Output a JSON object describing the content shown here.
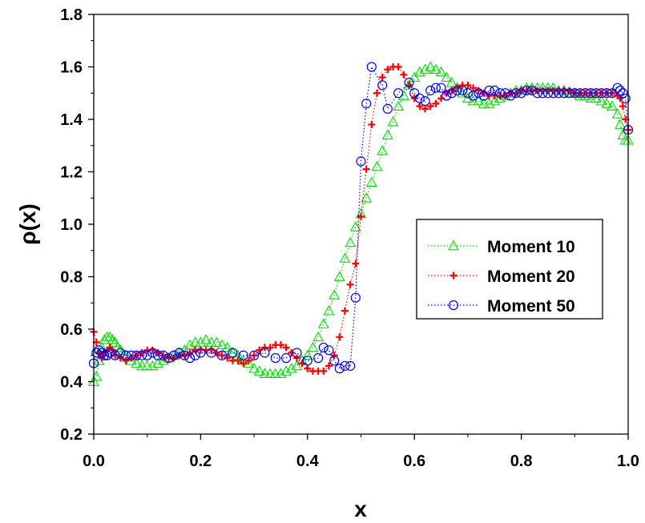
{
  "chart_data": {
    "type": "scatter",
    "title": "",
    "xlabel": "x",
    "ylabel": "ρ(x)",
    "xlim": [
      0.0,
      1.0
    ],
    "ylim": [
      0.2,
      1.8
    ],
    "xticks": [
      "0.0",
      "0.2",
      "0.4",
      "0.6",
      "0.8",
      "1.0"
    ],
    "yticks": [
      "0.2",
      "0.4",
      "0.6",
      "0.8",
      "1.0",
      "1.2",
      "1.4",
      "1.6",
      "1.8"
    ],
    "legend_position": "center-right",
    "grid": false,
    "series": [
      {
        "name": "Moment 10",
        "color": "#00dd00",
        "marker": "triangle",
        "x": [
          0.0,
          0.005,
          0.01,
          0.015,
          0.02,
          0.025,
          0.03,
          0.035,
          0.04,
          0.045,
          0.05,
          0.06,
          0.07,
          0.08,
          0.09,
          0.1,
          0.11,
          0.12,
          0.13,
          0.14,
          0.15,
          0.16,
          0.17,
          0.18,
          0.19,
          0.2,
          0.21,
          0.22,
          0.23,
          0.24,
          0.25,
          0.26,
          0.27,
          0.28,
          0.29,
          0.3,
          0.31,
          0.32,
          0.33,
          0.34,
          0.35,
          0.36,
          0.37,
          0.38,
          0.39,
          0.4,
          0.41,
          0.42,
          0.43,
          0.44,
          0.45,
          0.46,
          0.47,
          0.48,
          0.49,
          0.5,
          0.51,
          0.52,
          0.53,
          0.54,
          0.55,
          0.56,
          0.57,
          0.58,
          0.59,
          0.6,
          0.61,
          0.62,
          0.63,
          0.64,
          0.65,
          0.66,
          0.67,
          0.68,
          0.69,
          0.7,
          0.71,
          0.72,
          0.73,
          0.74,
          0.75,
          0.76,
          0.77,
          0.78,
          0.79,
          0.8,
          0.81,
          0.82,
          0.83,
          0.84,
          0.85,
          0.86,
          0.87,
          0.88,
          0.89,
          0.9,
          0.91,
          0.92,
          0.93,
          0.94,
          0.95,
          0.96,
          0.97,
          0.98,
          0.985,
          0.99,
          0.995,
          1.0
        ],
        "y": [
          0.4,
          0.42,
          0.48,
          0.53,
          0.56,
          0.57,
          0.57,
          0.56,
          0.55,
          0.53,
          0.52,
          0.5,
          0.48,
          0.47,
          0.46,
          0.46,
          0.46,
          0.47,
          0.48,
          0.49,
          0.5,
          0.51,
          0.52,
          0.54,
          0.55,
          0.55,
          0.56,
          0.55,
          0.55,
          0.54,
          0.53,
          0.51,
          0.5,
          0.48,
          0.47,
          0.45,
          0.44,
          0.43,
          0.43,
          0.43,
          0.43,
          0.44,
          0.45,
          0.46,
          0.48,
          0.5,
          0.53,
          0.57,
          0.62,
          0.67,
          0.73,
          0.8,
          0.87,
          0.93,
          0.99,
          1.04,
          1.1,
          1.16,
          1.22,
          1.28,
          1.34,
          1.39,
          1.45,
          1.49,
          1.53,
          1.56,
          1.58,
          1.59,
          1.6,
          1.59,
          1.58,
          1.56,
          1.54,
          1.52,
          1.5,
          1.48,
          1.47,
          1.47,
          1.46,
          1.46,
          1.47,
          1.48,
          1.49,
          1.5,
          1.51,
          1.51,
          1.52,
          1.52,
          1.52,
          1.52,
          1.52,
          1.52,
          1.51,
          1.51,
          1.5,
          1.5,
          1.49,
          1.49,
          1.48,
          1.48,
          1.47,
          1.46,
          1.45,
          1.42,
          1.38,
          1.34,
          1.32,
          1.32
        ]
      },
      {
        "name": "Moment 20",
        "color": "#ff0000",
        "marker": "plus",
        "x": [
          0.0,
          0.005,
          0.01,
          0.015,
          0.02,
          0.025,
          0.03,
          0.035,
          0.04,
          0.05,
          0.06,
          0.07,
          0.08,
          0.09,
          0.1,
          0.11,
          0.12,
          0.13,
          0.14,
          0.15,
          0.16,
          0.17,
          0.18,
          0.19,
          0.2,
          0.21,
          0.22,
          0.23,
          0.24,
          0.25,
          0.26,
          0.27,
          0.28,
          0.29,
          0.3,
          0.31,
          0.32,
          0.33,
          0.34,
          0.35,
          0.36,
          0.37,
          0.38,
          0.39,
          0.4,
          0.41,
          0.42,
          0.43,
          0.44,
          0.45,
          0.46,
          0.47,
          0.48,
          0.49,
          0.5,
          0.51,
          0.52,
          0.53,
          0.54,
          0.55,
          0.56,
          0.57,
          0.58,
          0.59,
          0.6,
          0.61,
          0.62,
          0.63,
          0.64,
          0.65,
          0.66,
          0.67,
          0.68,
          0.69,
          0.7,
          0.71,
          0.72,
          0.73,
          0.74,
          0.75,
          0.76,
          0.77,
          0.78,
          0.79,
          0.8,
          0.81,
          0.82,
          0.83,
          0.84,
          0.85,
          0.86,
          0.87,
          0.88,
          0.89,
          0.9,
          0.91,
          0.92,
          0.93,
          0.94,
          0.95,
          0.96,
          0.97,
          0.98,
          0.985,
          0.99,
          0.995,
          1.0
        ],
        "y": [
          0.59,
          0.55,
          0.51,
          0.49,
          0.5,
          0.52,
          0.53,
          0.52,
          0.5,
          0.49,
          0.48,
          0.49,
          0.5,
          0.51,
          0.52,
          0.52,
          0.51,
          0.5,
          0.49,
          0.49,
          0.5,
          0.5,
          0.51,
          0.52,
          0.52,
          0.52,
          0.52,
          0.51,
          0.5,
          0.49,
          0.48,
          0.48,
          0.47,
          0.48,
          0.5,
          0.52,
          0.53,
          0.53,
          0.54,
          0.54,
          0.53,
          0.51,
          0.49,
          0.47,
          0.45,
          0.44,
          0.44,
          0.44,
          0.46,
          0.5,
          0.57,
          0.67,
          0.77,
          0.85,
          1.03,
          1.21,
          1.38,
          1.5,
          1.56,
          1.59,
          1.6,
          1.6,
          1.57,
          1.53,
          1.48,
          1.45,
          1.44,
          1.45,
          1.46,
          1.48,
          1.5,
          1.51,
          1.52,
          1.53,
          1.53,
          1.52,
          1.51,
          1.5,
          1.49,
          1.49,
          1.49,
          1.49,
          1.5,
          1.5,
          1.51,
          1.51,
          1.51,
          1.51,
          1.51,
          1.51,
          1.51,
          1.51,
          1.51,
          1.51,
          1.5,
          1.5,
          1.5,
          1.5,
          1.5,
          1.5,
          1.5,
          1.5,
          1.49,
          1.48,
          1.45,
          1.4,
          1.36
        ]
      },
      {
        "name": "Moment 50",
        "color": "#0000ff",
        "marker": "circle",
        "x": [
          0.0,
          0.005,
          0.01,
          0.015,
          0.02,
          0.025,
          0.03,
          0.04,
          0.05,
          0.06,
          0.07,
          0.08,
          0.09,
          0.1,
          0.11,
          0.12,
          0.13,
          0.14,
          0.15,
          0.16,
          0.17,
          0.18,
          0.19,
          0.2,
          0.22,
          0.24,
          0.26,
          0.28,
          0.3,
          0.32,
          0.34,
          0.36,
          0.38,
          0.4,
          0.42,
          0.43,
          0.44,
          0.45,
          0.46,
          0.47,
          0.48,
          0.49,
          0.5,
          0.51,
          0.52,
          0.54,
          0.55,
          0.57,
          0.59,
          0.6,
          0.61,
          0.62,
          0.63,
          0.64,
          0.65,
          0.66,
          0.67,
          0.68,
          0.69,
          0.7,
          0.71,
          0.72,
          0.73,
          0.74,
          0.75,
          0.76,
          0.77,
          0.78,
          0.79,
          0.8,
          0.81,
          0.82,
          0.83,
          0.84,
          0.85,
          0.86,
          0.87,
          0.88,
          0.89,
          0.9,
          0.91,
          0.92,
          0.93,
          0.94,
          0.95,
          0.96,
          0.97,
          0.98,
          0.985,
          0.99,
          0.995,
          1.0
        ],
        "y": [
          0.47,
          0.51,
          0.52,
          0.51,
          0.5,
          0.5,
          0.51,
          0.5,
          0.51,
          0.5,
          0.5,
          0.5,
          0.5,
          0.5,
          0.51,
          0.5,
          0.5,
          0.49,
          0.5,
          0.51,
          0.5,
          0.49,
          0.5,
          0.51,
          0.51,
          0.5,
          0.51,
          0.5,
          0.5,
          0.51,
          0.49,
          0.49,
          0.51,
          0.48,
          0.49,
          0.53,
          0.52,
          0.48,
          0.45,
          0.46,
          0.46,
          0.72,
          1.24,
          1.46,
          1.6,
          1.53,
          1.44,
          1.5,
          1.54,
          1.5,
          1.48,
          1.47,
          1.51,
          1.52,
          1.52,
          1.49,
          1.5,
          1.51,
          1.51,
          1.5,
          1.49,
          1.5,
          1.49,
          1.51,
          1.51,
          1.5,
          1.5,
          1.49,
          1.5,
          1.5,
          1.51,
          1.51,
          1.5,
          1.5,
          1.5,
          1.5,
          1.5,
          1.5,
          1.5,
          1.5,
          1.5,
          1.5,
          1.5,
          1.5,
          1.5,
          1.5,
          1.5,
          1.52,
          1.51,
          1.5,
          1.48,
          1.36
        ]
      }
    ]
  }
}
